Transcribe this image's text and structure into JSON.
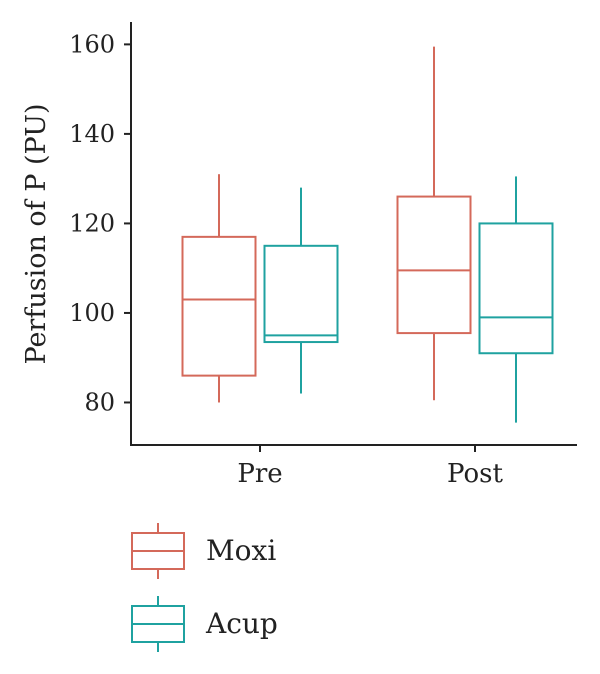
{
  "chart_data": {
    "type": "boxplot",
    "title": "",
    "xlabel": "",
    "ylabel": "Perfusion of P (PU)",
    "categories": [
      "Pre",
      "Post"
    ],
    "yticks": [
      80,
      100,
      120,
      140,
      160
    ],
    "ylim": [
      70.5,
      165
    ],
    "grid": false,
    "legend_position": "bottom-left",
    "series": [
      {
        "name": "Moxi",
        "color": "#d4695a",
        "boxes": [
          {
            "category": "Pre",
            "min": 80,
            "q1": 86,
            "median": 103,
            "q3": 117,
            "max": 131
          },
          {
            "category": "Post",
            "min": 80.5,
            "q1": 95.5,
            "median": 109.5,
            "q3": 126,
            "max": 159.5
          }
        ]
      },
      {
        "name": "Acup",
        "color": "#1fa2a0",
        "boxes": [
          {
            "category": "Pre",
            "min": 82,
            "q1": 93.5,
            "median": 95,
            "q3": 115,
            "max": 128
          },
          {
            "category": "Post",
            "min": 75.5,
            "q1": 91,
            "median": 99,
            "q3": 120,
            "max": 130.5
          }
        ]
      }
    ]
  }
}
